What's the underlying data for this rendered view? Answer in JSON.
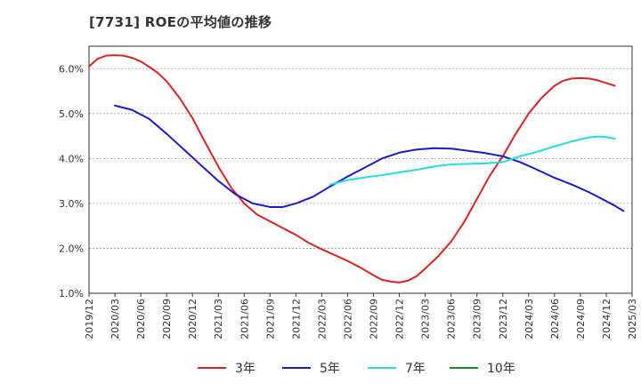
{
  "chart_data": {
    "type": "line",
    "title": "[7731]  ROEの平均値の推移",
    "xlabel": "",
    "ylabel": "",
    "ylim": [
      1.0,
      6.5
    ],
    "y_ticks": [
      1.0,
      2.0,
      3.0,
      4.0,
      5.0,
      6.0
    ],
    "y_tick_labels": [
      "1.0%",
      "2.0%",
      "3.0%",
      "4.0%",
      "5.0%",
      "6.0%"
    ],
    "x_ticks": [
      "2019/12",
      "2020/03",
      "2020/06",
      "2020/09",
      "2020/12",
      "2021/03",
      "2021/06",
      "2021/09",
      "2021/12",
      "2022/03",
      "2022/06",
      "2022/09",
      "2022/12",
      "2023/03",
      "2023/06",
      "2023/09",
      "2023/12",
      "2024/03",
      "2024/06",
      "2024/09",
      "2024/12",
      "2025/03"
    ],
    "grid": "horizontal-dashed",
    "legend_position": "bottom",
    "series": [
      {
        "name": "3年",
        "color": "#dd2222",
        "points": [
          [
            0,
            6.05
          ],
          [
            0.33,
            6.22
          ],
          [
            0.67,
            6.29
          ],
          [
            1,
            6.3
          ],
          [
            1.33,
            6.29
          ],
          [
            1.67,
            6.24
          ],
          [
            2,
            6.16
          ],
          [
            2.33,
            6.04
          ],
          [
            2.67,
            5.9
          ],
          [
            3,
            5.72
          ],
          [
            3.5,
            5.35
          ],
          [
            4,
            4.9
          ],
          [
            4.5,
            4.35
          ],
          [
            5,
            3.82
          ],
          [
            5.5,
            3.35
          ],
          [
            6,
            3.0
          ],
          [
            6.5,
            2.75
          ],
          [
            7,
            2.6
          ],
          [
            7.5,
            2.45
          ],
          [
            8,
            2.3
          ],
          [
            8.5,
            2.12
          ],
          [
            9,
            1.98
          ],
          [
            9.5,
            1.85
          ],
          [
            10,
            1.72
          ],
          [
            10.5,
            1.57
          ],
          [
            11,
            1.4
          ],
          [
            11.33,
            1.3
          ],
          [
            11.67,
            1.26
          ],
          [
            12,
            1.24
          ],
          [
            12.33,
            1.28
          ],
          [
            12.67,
            1.38
          ],
          [
            13,
            1.55
          ],
          [
            13.5,
            1.82
          ],
          [
            14,
            2.15
          ],
          [
            14.5,
            2.58
          ],
          [
            15,
            3.1
          ],
          [
            15.5,
            3.62
          ],
          [
            16,
            4.05
          ],
          [
            16.5,
            4.55
          ],
          [
            17,
            5.0
          ],
          [
            17.5,
            5.35
          ],
          [
            18,
            5.62
          ],
          [
            18.33,
            5.73
          ],
          [
            18.67,
            5.78
          ],
          [
            19,
            5.79
          ],
          [
            19.33,
            5.78
          ],
          [
            19.67,
            5.74
          ],
          [
            20,
            5.68
          ],
          [
            20.33,
            5.62
          ]
        ]
      },
      {
        "name": "5年",
        "color": "#1a1acc",
        "points": [
          [
            1,
            5.18
          ],
          [
            1.67,
            5.08
          ],
          [
            2.33,
            4.88
          ],
          [
            3,
            4.55
          ],
          [
            3.67,
            4.2
          ],
          [
            4.33,
            3.85
          ],
          [
            5,
            3.5
          ],
          [
            5.67,
            3.2
          ],
          [
            6.33,
            3.0
          ],
          [
            7,
            2.92
          ],
          [
            7.5,
            2.92
          ],
          [
            8,
            3.0
          ],
          [
            8.67,
            3.15
          ],
          [
            9.33,
            3.38
          ],
          [
            10,
            3.6
          ],
          [
            10.67,
            3.8
          ],
          [
            11.33,
            4.0
          ],
          [
            12,
            4.13
          ],
          [
            12.67,
            4.2
          ],
          [
            13.33,
            4.23
          ],
          [
            14,
            4.22
          ],
          [
            14.67,
            4.17
          ],
          [
            15.33,
            4.12
          ],
          [
            16,
            4.05
          ],
          [
            16.67,
            3.92
          ],
          [
            17.33,
            3.75
          ],
          [
            18,
            3.57
          ],
          [
            18.67,
            3.42
          ],
          [
            19.33,
            3.25
          ],
          [
            20,
            3.05
          ],
          [
            20.33,
            2.95
          ],
          [
            20.67,
            2.83
          ]
        ]
      },
      {
        "name": "7年",
        "color": "#22dddd",
        "points": [
          [
            9.33,
            3.42
          ],
          [
            10,
            3.52
          ],
          [
            10.67,
            3.58
          ],
          [
            11.33,
            3.63
          ],
          [
            12,
            3.69
          ],
          [
            12.67,
            3.75
          ],
          [
            13.33,
            3.82
          ],
          [
            14,
            3.87
          ],
          [
            14.67,
            3.88
          ],
          [
            15.33,
            3.89
          ],
          [
            16,
            3.92
          ],
          [
            16.67,
            4.05
          ],
          [
            17.33,
            4.15
          ],
          [
            18,
            4.27
          ],
          [
            18.67,
            4.38
          ],
          [
            19.33,
            4.47
          ],
          [
            19.67,
            4.49
          ],
          [
            20,
            4.48
          ],
          [
            20.33,
            4.44
          ]
        ]
      },
      {
        "name": "10年",
        "color": "#228822",
        "points": []
      }
    ]
  }
}
